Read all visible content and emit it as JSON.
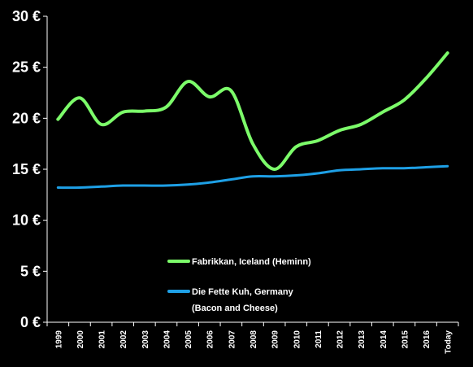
{
  "chart_data": {
    "type": "line",
    "categories": [
      "1999",
      "2000",
      "2001",
      "2002",
      "2003",
      "2004",
      "2005",
      "2006",
      "2007",
      "2008",
      "2009",
      "2010",
      "2011",
      "2012",
      "2013",
      "2014",
      "2015",
      "2016",
      "Today"
    ],
    "y_ticks": [
      "0 €",
      "5 €",
      "10 €",
      "15 €",
      "20 €",
      "25 €",
      "30 €"
    ],
    "ylim": [
      0,
      30
    ],
    "grid": false,
    "legend_position": "center-bottom",
    "background": "#000000",
    "series": [
      {
        "name": "Fabrikkan, Iceland (Heminn)",
        "color": "#7CFC6A",
        "values": [
          19.9,
          22.0,
          19.4,
          20.6,
          20.7,
          21.1,
          23.6,
          22.1,
          22.7,
          17.5,
          15.0,
          17.2,
          17.8,
          18.8,
          19.4,
          20.6,
          21.8,
          23.9,
          26.4
        ]
      },
      {
        "name": "Die Fette Kuh, Germany (Bacon and Cheese)",
        "legend_lines": [
          "Die Fette Kuh, Germany",
          "(Bacon and Cheese)"
        ],
        "color": "#1EA0E6",
        "values": [
          13.2,
          13.2,
          13.3,
          13.4,
          13.4,
          13.4,
          13.5,
          13.7,
          14.0,
          14.3,
          14.3,
          14.4,
          14.6,
          14.9,
          15.0,
          15.1,
          15.1,
          15.2,
          15.3
        ]
      }
    ]
  }
}
